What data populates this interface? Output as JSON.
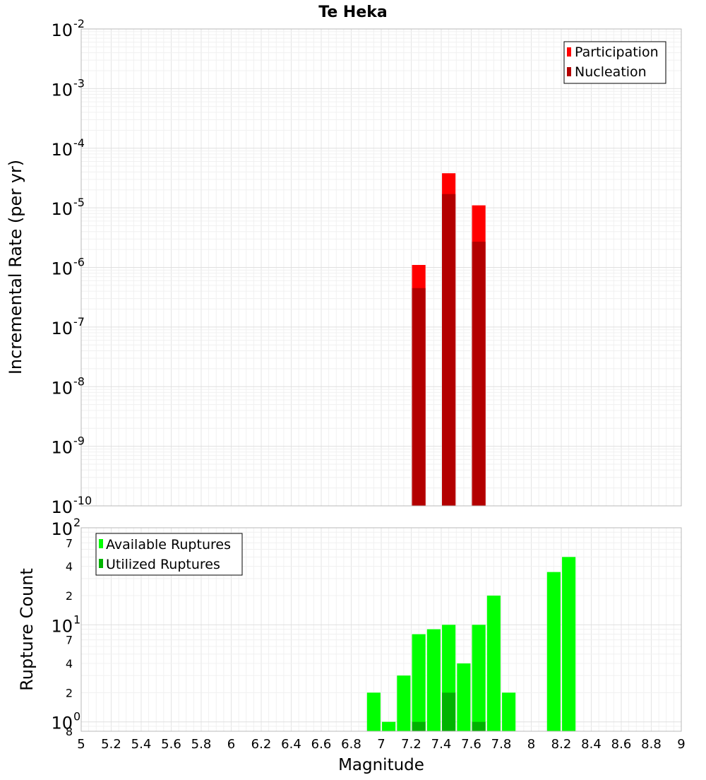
{
  "title": "Te Heka",
  "chart_data": [
    {
      "type": "bar",
      "title": "Te Heka",
      "ylabel": "Incremental Rate (per yr)",
      "y_scale": "log",
      "ylim": [
        1e-10,
        0.01
      ],
      "xlim": [
        5,
        9
      ],
      "grid": true,
      "legend_position": "top-right",
      "bar_width": 0.09,
      "y_tick_labels": [
        {
          "value": 1e-10,
          "base": "10",
          "exp": "-10"
        },
        {
          "value": 1e-09,
          "base": "10",
          "exp": "-9"
        },
        {
          "value": 1e-08,
          "base": "10",
          "exp": "-8"
        },
        {
          "value": 1e-07,
          "base": "10",
          "exp": "-7"
        },
        {
          "value": 1e-06,
          "base": "10",
          "exp": "-6"
        },
        {
          "value": 1e-05,
          "base": "10",
          "exp": "-5"
        },
        {
          "value": 0.0001,
          "base": "10",
          "exp": "-4"
        },
        {
          "value": 0.001,
          "base": "10",
          "exp": "-3"
        },
        {
          "value": 0.01,
          "base": "10",
          "exp": "-2"
        }
      ],
      "series": [
        {
          "name": "Participation",
          "color": "#ff0000",
          "x": [
            7.25,
            7.45,
            7.65
          ],
          "values": [
            1.1e-06,
            3.8e-05,
            1.1e-05
          ]
        },
        {
          "name": "Nucleation",
          "color": "#b30000",
          "x": [
            7.25,
            7.45,
            7.65
          ],
          "values": [
            4.5e-07,
            1.7e-05,
            2.7e-06
          ]
        }
      ]
    },
    {
      "type": "bar",
      "xlabel": "Magnitude",
      "ylabel": "Rupture Count",
      "y_scale": "log",
      "ylim": [
        0.8,
        100
      ],
      "xlim": [
        5,
        9
      ],
      "grid": true,
      "legend_position": "top-left",
      "bar_width": 0.09,
      "x_ticks": [
        "5",
        "5.2",
        "5.4",
        "5.6",
        "5.8",
        "6",
        "6.2",
        "6.4",
        "6.6",
        "6.8",
        "7",
        "7.2",
        "7.4",
        "7.6",
        "7.8",
        "8",
        "8.2",
        "8.4",
        "8.6",
        "8.8",
        "9"
      ],
      "y_tick_labels": [
        {
          "value": 0.8,
          "base": "8",
          "exp": ""
        },
        {
          "value": 1,
          "base": "10",
          "exp": "0"
        },
        {
          "value": 2,
          "base": "2",
          "exp": ""
        },
        {
          "value": 4,
          "base": "4",
          "exp": ""
        },
        {
          "value": 7,
          "base": "7",
          "exp": ""
        },
        {
          "value": 10,
          "base": "10",
          "exp": "1"
        },
        {
          "value": 20,
          "base": "2",
          "exp": ""
        },
        {
          "value": 40,
          "base": "4",
          "exp": ""
        },
        {
          "value": 70,
          "base": "7",
          "exp": ""
        },
        {
          "value": 100,
          "base": "10",
          "exp": "2"
        }
      ],
      "series": [
        {
          "name": "Available Ruptures",
          "color": "#00ff00",
          "x": [
            6.95,
            7.05,
            7.15,
            7.25,
            7.35,
            7.45,
            7.55,
            7.65,
            7.75,
            7.85,
            8.15,
            8.25
          ],
          "values": [
            2,
            1,
            3,
            8,
            9,
            10,
            4,
            10,
            20,
            2,
            35,
            50
          ]
        },
        {
          "name": "Utilized Ruptures",
          "color": "#00b300",
          "x": [
            7.25,
            7.45,
            7.65
          ],
          "values": [
            1,
            2,
            1
          ]
        }
      ]
    }
  ]
}
